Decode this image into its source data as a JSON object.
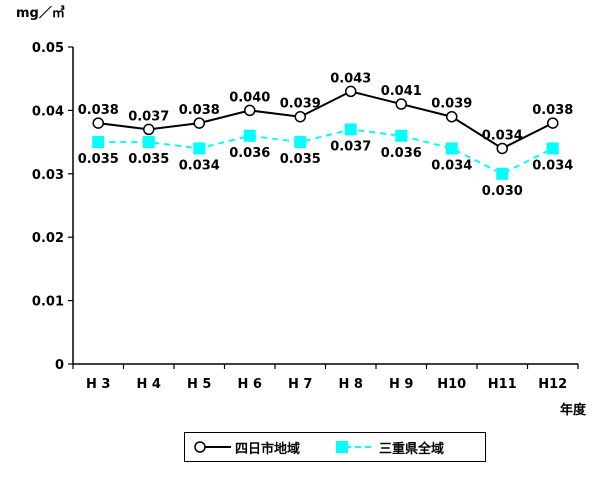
{
  "chart_data": {
    "type": "line",
    "unit": "mg／㎥",
    "xlabel": "年度",
    "categories": [
      "H 3",
      "H 4",
      "H 5",
      "H 6",
      "H 7",
      "H 8",
      "H 9",
      "H10",
      "H11",
      "H12"
    ],
    "ylim": [
      0,
      0.05
    ],
    "yticks": [
      "0",
      "0.01",
      "0.02",
      "0.03",
      "0.04",
      "0.05"
    ],
    "ytick_values": [
      0,
      0.01,
      0.02,
      0.03,
      0.04,
      0.05
    ],
    "grid": false,
    "legend_position": "bottom-center",
    "series": [
      {
        "name": "四日市地域",
        "values": [
          0.038,
          0.037,
          0.038,
          0.04,
          0.039,
          0.043,
          0.041,
          0.039,
          0.034,
          0.038
        ],
        "labels": [
          "0.038",
          "0.037",
          "0.038",
          "0.040",
          "0.039",
          "0.043",
          "0.041",
          "0.039",
          "0.034",
          "0.038"
        ],
        "color": "#000000",
        "marker": "open-circle",
        "line": "solid",
        "label_position": "above"
      },
      {
        "name": "三重県全域",
        "values": [
          0.035,
          0.035,
          0.034,
          0.036,
          0.035,
          0.037,
          0.036,
          0.034,
          0.03,
          0.034
        ],
        "labels": [
          "0.035",
          "0.035",
          "0.034",
          "0.036",
          "0.035",
          "0.037",
          "0.036",
          "0.034",
          "0.030",
          "0.034"
        ],
        "color": "#00ffff",
        "marker": "filled-square",
        "line": "dashed",
        "label_position": "below"
      }
    ]
  }
}
